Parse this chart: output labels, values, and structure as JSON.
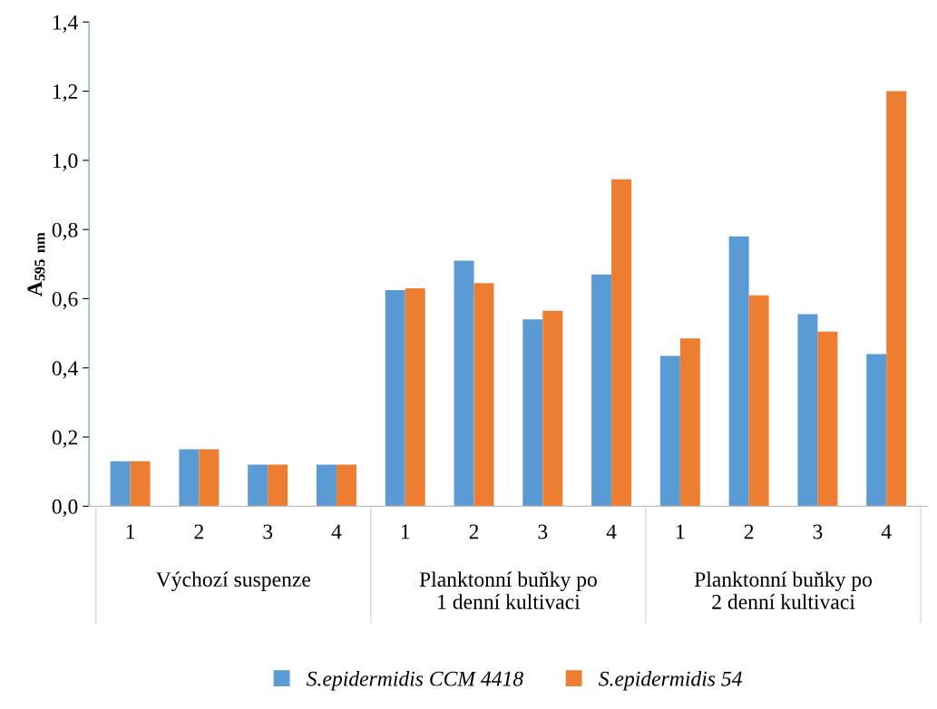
{
  "chart_data": {
    "type": "bar",
    "ylabel": "A$_{595}$ $_{nm}$",
    "categories": [
      "1",
      "2",
      "3",
      "4",
      "1",
      "2",
      "3",
      "4",
      "1",
      "2",
      "3",
      "4"
    ],
    "annotations": [
      "Výchozí suspenze",
      "Planktonní buňky po 1 denní kultivaci",
      "Planktonní buňky po 2 denní kultivaci"
    ],
    "series": [
      {
        "name": "S.epidermidis CCM 4418",
        "color": "#5b9bd5",
        "values": [
          0.13,
          0.165,
          0.12,
          0.12,
          0.625,
          0.71,
          0.54,
          0.67,
          0.435,
          0.78,
          0.555,
          0.44
        ]
      },
      {
        "name": "S.epidermidis 54",
        "color": "#ed7d31",
        "values": [
          0.13,
          0.165,
          0.12,
          0.12,
          0.63,
          0.645,
          0.565,
          0.945,
          0.485,
          0.61,
          0.505,
          1.2
        ]
      }
    ],
    "ylim": [
      0,
      1.4
    ],
    "yticks": [
      {
        "value": 0,
        "label": "0,0"
      },
      {
        "value": 0.2,
        "label": "0,2"
      },
      {
        "value": 0.4,
        "label": "0,4"
      },
      {
        "value": 0.6,
        "label": "0,6"
      },
      {
        "value": 0.8,
        "label": "0,8"
      },
      {
        "value": 1.0,
        "label": "1,0"
      },
      {
        "value": 1.2,
        "label": "1,2"
      },
      {
        "value": 1.4,
        "label": "1,4"
      }
    ],
    "grid": false,
    "legend": "bottom"
  }
}
